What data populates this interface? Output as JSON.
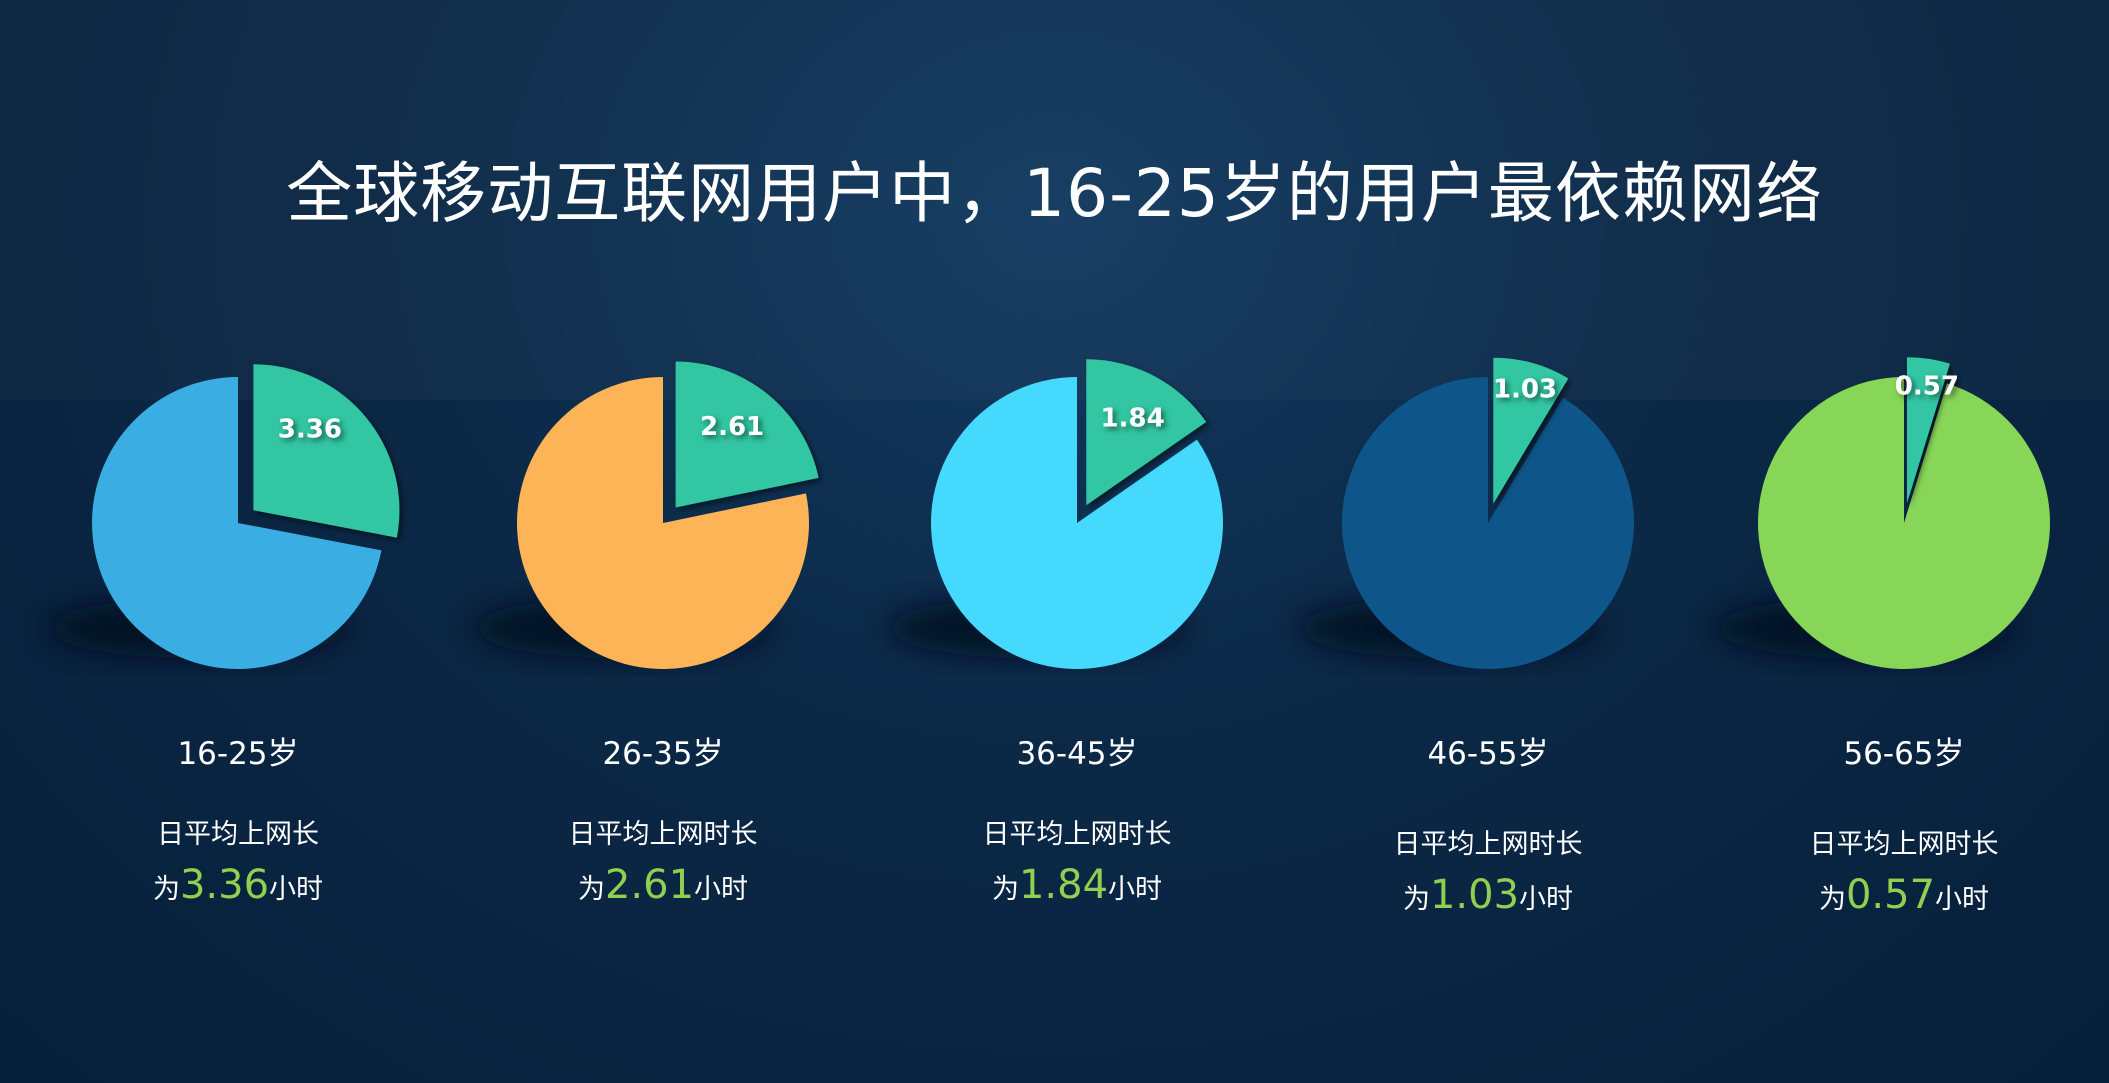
{
  "title": "全球移动互联网用户中，16-25岁的用户最依赖网络",
  "colors": {
    "slice": "#33c6a2",
    "value_text": "#8fd14f",
    "background": "#0b2846"
  },
  "chart_data": {
    "type": "pie",
    "title": "全球移动互联网用户中，16-25岁的用户最依赖网络",
    "unit": "小时",
    "categories": [
      "16-25岁",
      "26-35岁",
      "36-45岁",
      "46-55岁",
      "56-65岁"
    ],
    "values": [
      3.36,
      2.61,
      1.84,
      1.03,
      0.57
    ],
    "value_labels": [
      "3.36",
      "2.61",
      "1.84",
      "1.03",
      "0.57"
    ],
    "pie_colors": [
      "#3aaee2",
      "#fdb457",
      "#45d9fd",
      "#0e5589",
      "#87d657"
    ],
    "items": [
      {
        "age": "16-25岁",
        "desc": "日平均上网长",
        "prefix": "为",
        "value": "3.36",
        "suffix": "小时"
      },
      {
        "age": "26-35岁",
        "desc": "日平均上网时长",
        "prefix": "为",
        "value": "2.61",
        "suffix": "小时"
      },
      {
        "age": "36-45岁",
        "desc": "日平均上网时长",
        "prefix": "为",
        "value": "1.84",
        "suffix": "小时"
      },
      {
        "age": "46-55岁",
        "desc": "日平均上网时长",
        "prefix": "为",
        "value": "1.03",
        "suffix": "小时"
      },
      {
        "age": "56-65岁",
        "desc": "日平均上网时长",
        "prefix": "为",
        "value": "0.57",
        "suffix": "小时"
      }
    ]
  }
}
